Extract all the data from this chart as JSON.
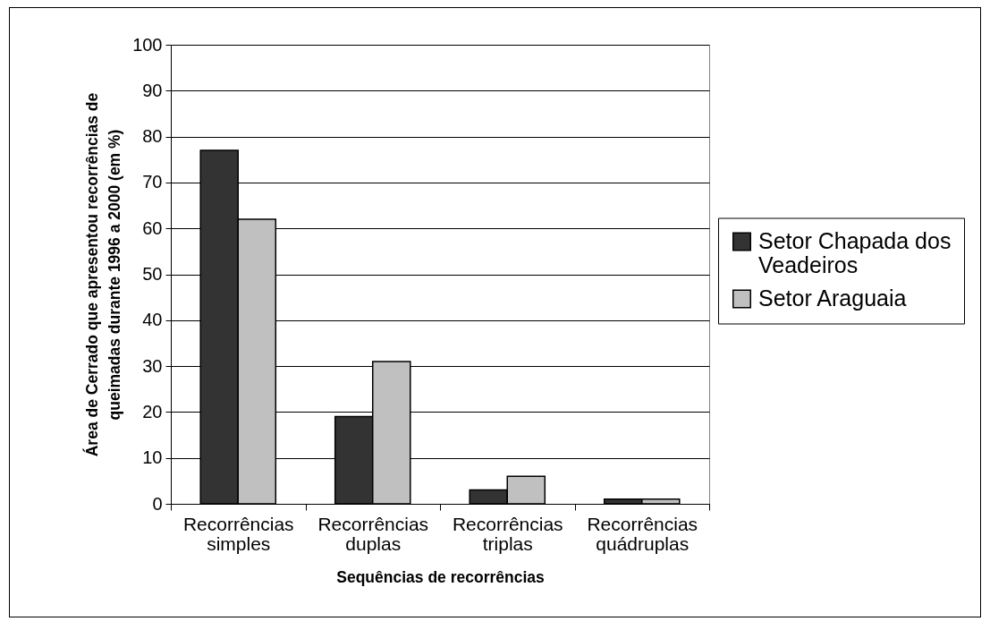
{
  "chart_data": {
    "type": "bar",
    "xlabel": "Sequências de recorrências",
    "ylabel": "Área de Cerrado que apresentou recorrências de queimadas durante 1996 a 2000 (em %)",
    "categories": [
      "Recorrências simples",
      "Recorrências duplas",
      "Recorrências triplas",
      "Recorrências quádruplas"
    ],
    "series": [
      {
        "name": "Setor Chapada dos Veadeiros",
        "color": "#333333",
        "values": [
          77,
          19,
          3,
          1
        ]
      },
      {
        "name": "Setor Araguaia",
        "color": "#c0c0c0",
        "values": [
          62,
          31,
          6,
          1
        ]
      }
    ],
    "ylim": [
      0,
      100
    ],
    "yticks": [
      0,
      10,
      20,
      30,
      40,
      50,
      60,
      70,
      80,
      90,
      100
    ],
    "grid": "y",
    "legend": "right"
  }
}
